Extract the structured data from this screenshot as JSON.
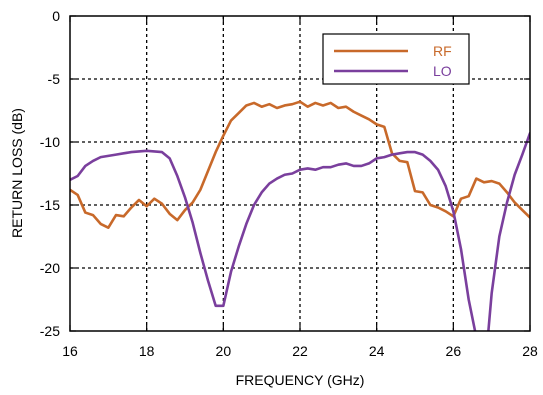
{
  "chart_data": {
    "type": "line",
    "title": "",
    "xlabel": "FREQUENCY (GHz)",
    "ylabel": "RETURN LOSS  (dB)",
    "xlim": [
      16,
      28
    ],
    "ylim": [
      -25,
      0
    ],
    "x_ticks": [
      16,
      18,
      20,
      22,
      24,
      26,
      28
    ],
    "y_ticks": [
      0,
      -5,
      -10,
      -15,
      -20,
      -25
    ],
    "x_tick_labels": [
      "16",
      "18",
      "20",
      "22",
      "24",
      "26",
      "28"
    ],
    "y_tick_labels": [
      "0",
      "-5",
      "-10",
      "-15",
      "-20",
      "-25"
    ],
    "grid": true,
    "legend_position": "top-right",
    "series": [
      {
        "name": "RF",
        "color": "#c8692a",
        "x": [
          16.0,
          16.2,
          16.4,
          16.6,
          16.8,
          17.0,
          17.2,
          17.4,
          17.6,
          17.8,
          18.0,
          18.2,
          18.4,
          18.6,
          18.8,
          19.0,
          19.2,
          19.4,
          19.6,
          19.8,
          20.0,
          20.2,
          20.4,
          20.6,
          20.8,
          21.0,
          21.2,
          21.4,
          21.6,
          21.8,
          22.0,
          22.2,
          22.4,
          22.6,
          22.8,
          23.0,
          23.2,
          23.4,
          23.6,
          23.8,
          24.0,
          24.2,
          24.4,
          24.6,
          24.8,
          25.0,
          25.2,
          25.4,
          25.6,
          25.8,
          26.0,
          26.2,
          26.4,
          26.6,
          26.8,
          27.0,
          27.2,
          27.4,
          27.6,
          27.8,
          28.0
        ],
        "values": [
          -13.8,
          -14.2,
          -15.6,
          -15.8,
          -16.5,
          -16.8,
          -15.8,
          -15.9,
          -15.2,
          -14.6,
          -15.1,
          -14.5,
          -14.9,
          -15.7,
          -16.2,
          -15.4,
          -14.8,
          -13.8,
          -12.3,
          -10.8,
          -9.5,
          -8.3,
          -7.7,
          -7.1,
          -6.9,
          -7.2,
          -7.0,
          -7.3,
          -7.1,
          -7.0,
          -6.8,
          -7.2,
          -6.9,
          -7.1,
          -6.9,
          -7.3,
          -7.2,
          -7.6,
          -7.9,
          -8.2,
          -8.6,
          -8.8,
          -10.9,
          -11.5,
          -11.6,
          -13.9,
          -14.0,
          -15.0,
          -15.2,
          -15.5,
          -15.9,
          -14.5,
          -14.3,
          -12.9,
          -13.2,
          -13.1,
          -13.3,
          -14.0,
          -14.8,
          -15.4,
          -16.0
        ]
      },
      {
        "name": "LO",
        "color": "#7a3f9d",
        "x": [
          16.0,
          16.2,
          16.4,
          16.6,
          16.8,
          17.0,
          17.2,
          17.4,
          17.6,
          17.8,
          18.0,
          18.2,
          18.4,
          18.6,
          18.8,
          19.0,
          19.2,
          19.4,
          19.6,
          19.8,
          20.0,
          20.2,
          20.4,
          20.6,
          20.8,
          21.0,
          21.2,
          21.4,
          21.6,
          21.8,
          22.0,
          22.2,
          22.4,
          22.6,
          22.8,
          23.0,
          23.2,
          23.4,
          23.6,
          23.8,
          24.0,
          24.2,
          24.4,
          24.6,
          24.8,
          25.0,
          25.2,
          25.4,
          25.6,
          25.8,
          26.0,
          26.2,
          26.4,
          26.6,
          26.7,
          26.8,
          26.9,
          27.0,
          27.2,
          27.4,
          27.6,
          27.8,
          28.0
        ],
        "values": [
          -13.0,
          -12.7,
          -11.9,
          -11.5,
          -11.2,
          -11.1,
          -11.0,
          -10.9,
          -10.8,
          -10.75,
          -10.7,
          -10.75,
          -10.8,
          -11.3,
          -12.7,
          -14.4,
          -16.4,
          -18.8,
          -21.0,
          -23.0,
          -23.0,
          -20.3,
          -18.3,
          -16.5,
          -15.0,
          -14.0,
          -13.3,
          -12.9,
          -12.6,
          -12.5,
          -12.2,
          -12.1,
          -12.2,
          -12.0,
          -12.0,
          -11.8,
          -11.7,
          -11.9,
          -11.9,
          -11.7,
          -11.3,
          -11.2,
          -11.0,
          -10.9,
          -10.8,
          -10.8,
          -11.0,
          -11.5,
          -12.2,
          -13.5,
          -15.5,
          -18.5,
          -22.5,
          -25.5,
          -27.0,
          -27.0,
          -25.5,
          -22.0,
          -17.5,
          -14.8,
          -12.6,
          -11.0,
          -9.3
        ]
      }
    ]
  }
}
